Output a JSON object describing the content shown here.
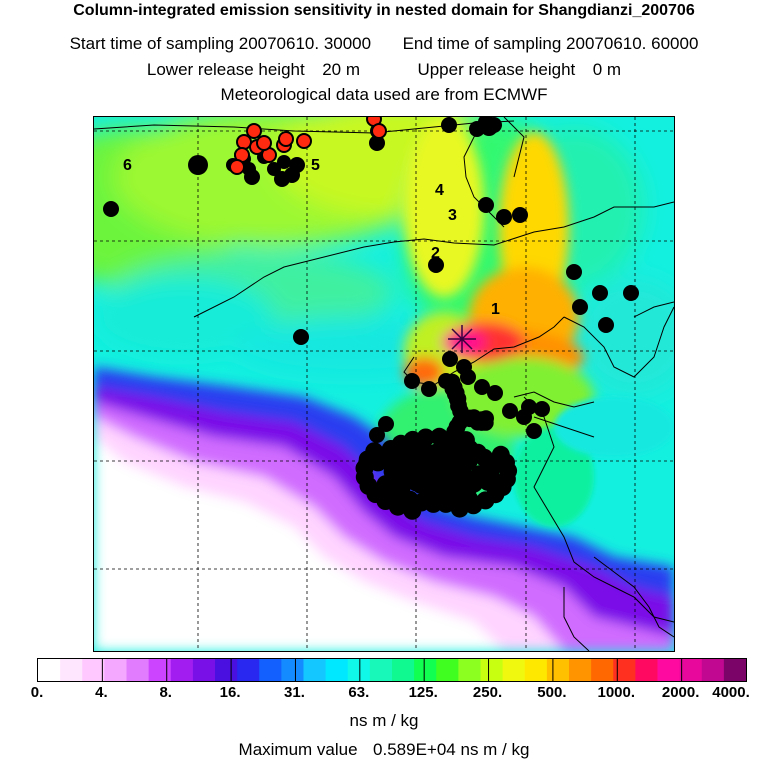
{
  "title": "Column-integrated emission sensitivity in nested domain for Shangdianzi_200706",
  "sampling": {
    "start_label": "Start time of sampling",
    "start_value": "20070610. 30000",
    "end_label": "End time of sampling",
    "end_value": "20070610. 60000"
  },
  "release": {
    "lower_label": "Lower release height",
    "lower_value": "20 m",
    "upper_label": "Upper release height",
    "upper_value": "0 m"
  },
  "met_note": "Meteorological data used are from ECMWF",
  "map_labels": [
    "1",
    "2",
    "3",
    "4",
    "5",
    "6"
  ],
  "legend": {
    "colors": [
      "#ffffff",
      "#ffe6ff",
      "#ffc8ff",
      "#f5a8ff",
      "#e27cff",
      "#cc44ff",
      "#a21ef0",
      "#7a10e8",
      "#4a10e0",
      "#2828f0",
      "#1460ff",
      "#148cff",
      "#14c8ff",
      "#00e8ff",
      "#10f8e8",
      "#18f8b8",
      "#10f890",
      "#10ff50",
      "#40ff20",
      "#8cff20",
      "#c8ff10",
      "#f0f810",
      "#ffe800",
      "#ffc000",
      "#ff9400",
      "#ff6800",
      "#ff3020",
      "#ff0a60",
      "#ff0aa0",
      "#e8089c",
      "#c00890",
      "#7a0468"
    ],
    "tick_labels": [
      "0.",
      "4.",
      "8.",
      "16.",
      "31.",
      "63.",
      "125.",
      "250.",
      "500.",
      "1000.",
      "2000.",
      "4000."
    ],
    "units": "ns m / kg"
  },
  "max_value_label": "Maximum value",
  "max_value": "0.589E+04 ns m / kg"
}
